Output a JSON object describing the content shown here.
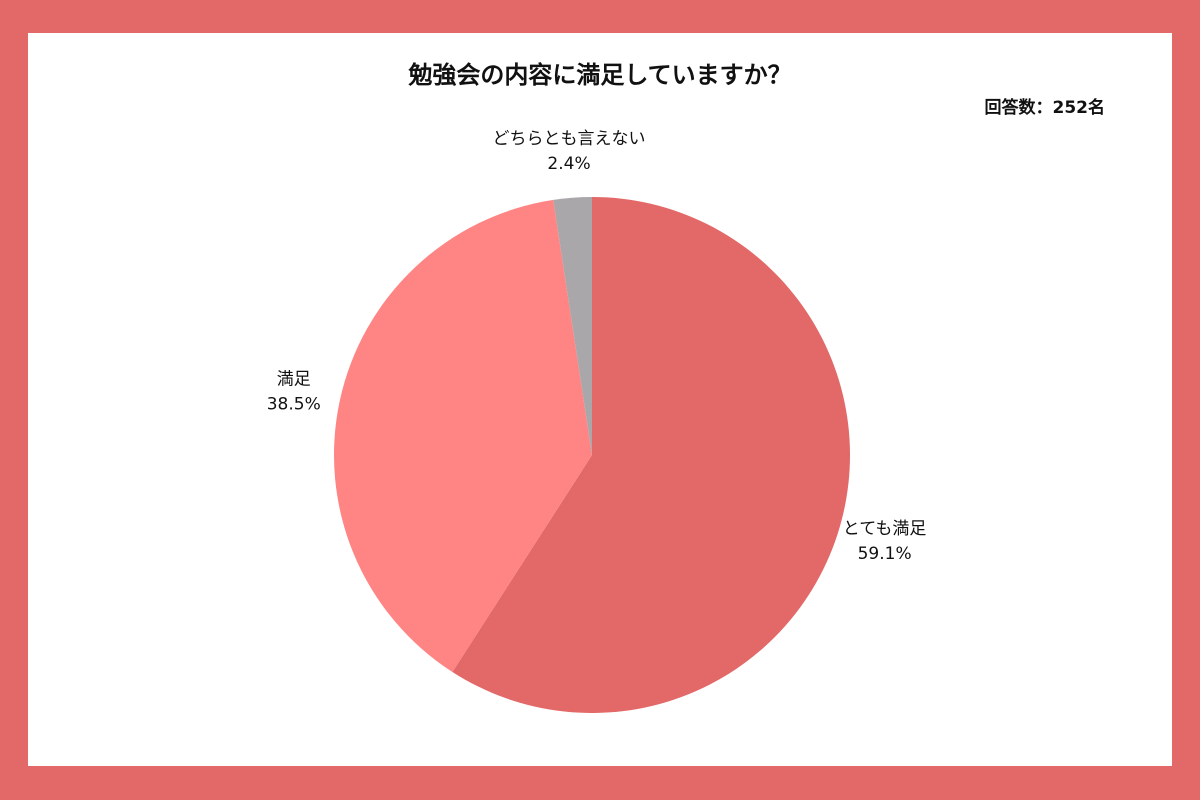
{
  "chart_data": {
    "type": "pie",
    "title": "勉強会の内容に満足していますか？",
    "note": "回答数：252名",
    "categories": [
      "とても満足",
      "満足",
      "どちらとも言えない"
    ],
    "values": [
      59.1,
      38.5,
      2.4
    ],
    "value_labels": [
      "59.1%",
      "38.5%",
      "2.4%"
    ],
    "colors": [
      "#e36868",
      "#ff8585",
      "#aaa7aa"
    ]
  }
}
